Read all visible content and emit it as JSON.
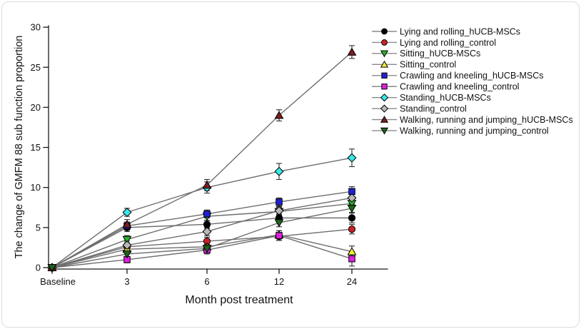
{
  "chart_data": {
    "type": "line",
    "title": "",
    "xlabel": "Month post treatment",
    "ylabel": "The change of GMFM 88 sub function proportion",
    "categories": [
      "Baseline",
      "3",
      "6",
      "12",
      "24"
    ],
    "y_ticks": [
      0,
      5,
      10,
      15,
      20,
      25,
      30
    ],
    "ylim": [
      0,
      30
    ],
    "grid": false,
    "legend_position": "top-right",
    "line_color": "#6e6e6e",
    "axis_color": "#1a1a1a",
    "error_bars": true,
    "series": [
      {
        "name": "Lying and rolling_hUCB-MSCs",
        "marker": "circle",
        "color": "#000000",
        "values": [
          0,
          5.0,
          5.4,
          6.2,
          6.2
        ],
        "errors": [
          0.12,
          0.5,
          0.5,
          0.5,
          0.6
        ]
      },
      {
        "name": "Lying and rolling_control",
        "marker": "circle",
        "color": "#cc2027",
        "values": [
          0,
          2.6,
          3.3,
          3.9,
          4.8
        ],
        "errors": [
          0.12,
          0.5,
          0.5,
          0.5,
          0.6
        ]
      },
      {
        "name": "Sitting_hUCB-MSCs",
        "marker": "triangle-down",
        "color": "#27b32a",
        "values": [
          0,
          3.5,
          6.4,
          7.0,
          8.0
        ],
        "errors": [
          0.12,
          0.5,
          0.5,
          0.5,
          0.5
        ]
      },
      {
        "name": "Sitting_control",
        "marker": "triangle-up",
        "color": "#f2ee32",
        "values": [
          0,
          2.3,
          2.6,
          4.1,
          2.0
        ],
        "errors": [
          0.12,
          0.5,
          0.5,
          0.5,
          0.7
        ]
      },
      {
        "name": "Crawling and kneeling_hUCB-MSCs",
        "marker": "square",
        "color": "#2020d6",
        "values": [
          0,
          5.2,
          6.7,
          8.2,
          9.5
        ],
        "errors": [
          0.12,
          0.5,
          0.5,
          0.5,
          0.6
        ]
      },
      {
        "name": "Crawling and kneeling_control",
        "marker": "square",
        "color": "#df20df",
        "values": [
          0,
          1.0,
          2.2,
          4.0,
          1.1
        ],
        "errors": [
          0.12,
          0.4,
          0.5,
          0.6,
          0.9
        ]
      },
      {
        "name": "Standing_hUCB-MSCs",
        "marker": "diamond",
        "color": "#38e8e8",
        "values": [
          0,
          6.9,
          10.0,
          12.0,
          13.7
        ],
        "errors": [
          0.12,
          0.5,
          0.7,
          1.0,
          1.1
        ]
      },
      {
        "name": "Standing_control",
        "marker": "diamond",
        "color": "#b8b8b8",
        "values": [
          0,
          2.8,
          4.5,
          7.1,
          8.7
        ],
        "errors": [
          0.12,
          0.5,
          0.5,
          0.5,
          0.6
        ]
      },
      {
        "name": "Walking, running and jumping_hUCB-MSCs",
        "marker": "triangle-up",
        "color": "#7c1d1d",
        "values": [
          0,
          5.4,
          10.3,
          19.0,
          26.9
        ],
        "errors": [
          0.12,
          0.6,
          0.7,
          0.7,
          0.8
        ]
      },
      {
        "name": "Walking, running and jumping_control",
        "marker": "triangle-down",
        "color": "#1e641e",
        "values": [
          0,
          1.7,
          2.4,
          5.6,
          7.4
        ],
        "errors": [
          0.12,
          0.4,
          0.5,
          0.5,
          0.5
        ]
      }
    ]
  }
}
